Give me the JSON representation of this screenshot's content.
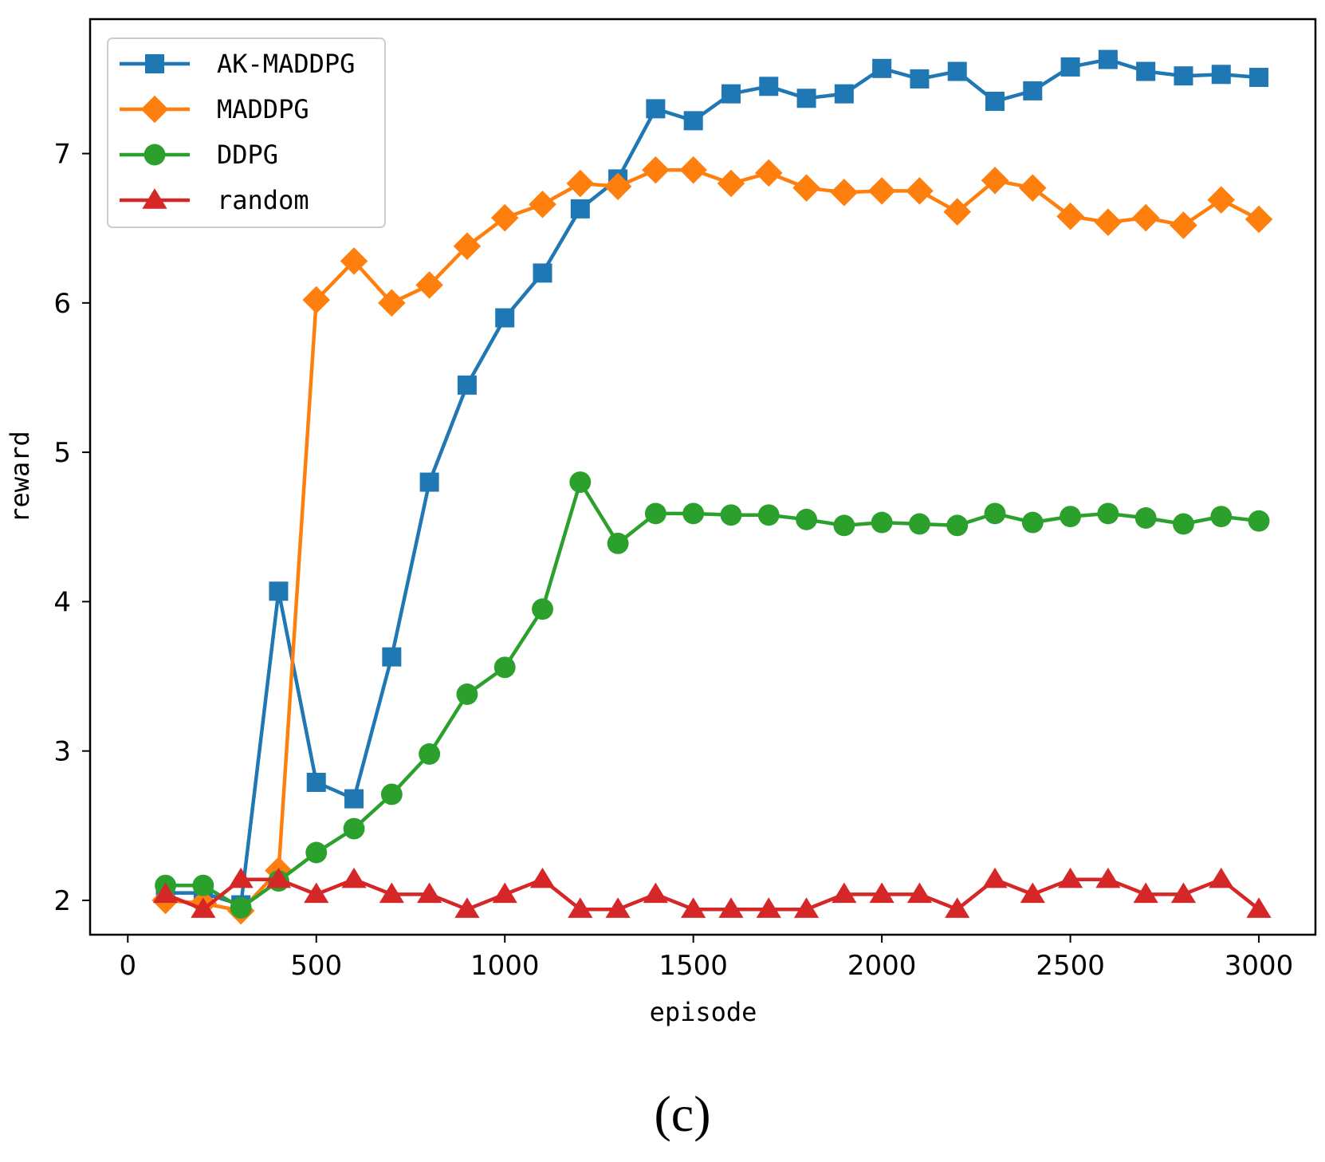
{
  "chart_data": {
    "type": "line",
    "title": "",
    "xlabel": "episode",
    "ylabel": "reward",
    "xlim": [
      -100,
      3150
    ],
    "ylim": [
      1.77,
      7.9
    ],
    "xticks": [
      0,
      500,
      1000,
      1500,
      2000,
      2500,
      3000
    ],
    "yticks": [
      2,
      3,
      4,
      5,
      6,
      7
    ],
    "legend_position": "top-left",
    "grid": false,
    "x": [
      100,
      200,
      300,
      400,
      500,
      600,
      700,
      800,
      900,
      1000,
      1100,
      1200,
      1300,
      1400,
      1500,
      1600,
      1700,
      1800,
      1900,
      2000,
      2100,
      2200,
      2300,
      2400,
      2500,
      2600,
      2700,
      2800,
      2900,
      3000
    ],
    "series": [
      {
        "name": "AK-MADDPG",
        "color": "#1f77b4",
        "marker": "square",
        "values": [
          2.05,
          2.05,
          1.97,
          4.07,
          2.79,
          2.68,
          3.63,
          4.8,
          5.45,
          5.9,
          6.2,
          6.63,
          6.83,
          7.3,
          7.22,
          7.4,
          7.45,
          7.37,
          7.4,
          7.57,
          7.5,
          7.55,
          7.35,
          7.42,
          7.58,
          7.63,
          7.55,
          7.52,
          7.53,
          7.51
        ]
      },
      {
        "name": "MADDPG",
        "color": "#ff7f0e",
        "marker": "diamond",
        "values": [
          2.0,
          1.98,
          1.93,
          2.2,
          6.02,
          6.28,
          6.0,
          6.12,
          6.38,
          6.57,
          6.66,
          6.8,
          6.78,
          6.89,
          6.89,
          6.8,
          6.87,
          6.77,
          6.74,
          6.75,
          6.75,
          6.61,
          6.82,
          6.77,
          6.58,
          6.54,
          6.57,
          6.52,
          6.69,
          6.56
        ]
      },
      {
        "name": "DDPG",
        "color": "#2ca02c",
        "marker": "circle",
        "values": [
          2.1,
          2.1,
          1.95,
          2.13,
          2.32,
          2.48,
          2.71,
          2.98,
          3.38,
          3.56,
          3.95,
          4.8,
          4.39,
          4.59,
          4.59,
          4.58,
          4.58,
          4.55,
          4.51,
          4.53,
          4.52,
          4.51,
          4.59,
          4.53,
          4.57,
          4.59,
          4.56,
          4.52,
          4.57,
          4.54
        ]
      },
      {
        "name": "random",
        "color": "#d62728",
        "marker": "triangle",
        "values": [
          2.04,
          1.94,
          2.14,
          2.14,
          2.04,
          2.14,
          2.04,
          2.04,
          1.94,
          2.04,
          2.14,
          1.94,
          1.94,
          2.04,
          1.94,
          1.94,
          1.94,
          1.94,
          2.04,
          2.04,
          2.04,
          1.94,
          2.14,
          2.04,
          2.14,
          2.14,
          2.04,
          2.04,
          2.14,
          1.94
        ]
      }
    ]
  },
  "panel_label": "(c)"
}
